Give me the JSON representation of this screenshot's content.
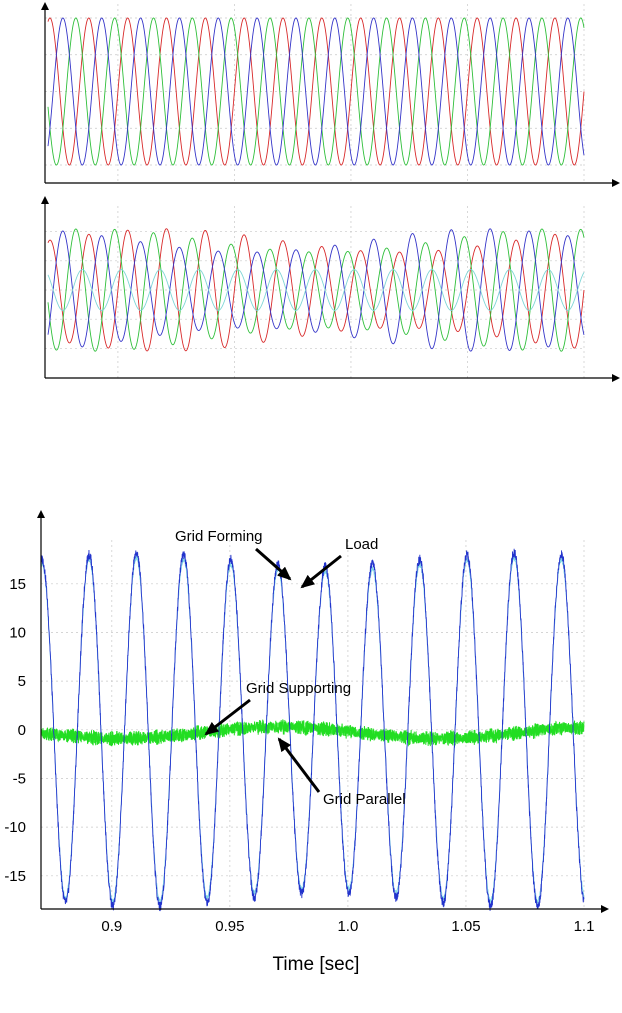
{
  "chart_data": [
    {
      "type": "line",
      "title": "",
      "xlabel": "",
      "ylabel": "",
      "grid": true,
      "x_range": [
        0.87,
        1.1
      ],
      "y_range": [
        -1,
        1
      ],
      "frequency_hz": 60,
      "series": [
        {
          "phase_deg": 0,
          "amplitude": 1.0,
          "color": "#d8292a"
        },
        {
          "phase_deg": 120,
          "amplitude": 1.0,
          "color": "#2fbf3a"
        },
        {
          "phase_deg": 240,
          "amplitude": 1.0,
          "color": "#3434c8"
        }
      ]
    },
    {
      "type": "line",
      "title": "",
      "xlabel": "",
      "ylabel": "",
      "grid": true,
      "x_range": [
        0.87,
        1.1
      ],
      "y_range": [
        -1.2,
        1.2
      ],
      "frequency_hz": 60,
      "series": [
        {
          "phase_deg": 0,
          "amplitude": 1.0,
          "color": "#d8292a"
        },
        {
          "phase_deg": 120,
          "amplitude": 1.0,
          "color": "#2fbf3a"
        },
        {
          "phase_deg": 240,
          "amplitude": 1.0,
          "color": "#3434c8"
        },
        {
          "phase_deg": 60,
          "amplitude": 0.35,
          "color": "#7fd6d6"
        }
      ]
    },
    {
      "type": "line",
      "title": "",
      "xlabel": "Time [sec]",
      "ylabel": "",
      "grid": true,
      "x_range": [
        0.87,
        1.1
      ],
      "y_range": [
        -18,
        19.5
      ],
      "x_ticks": [
        0.9,
        0.95,
        1.0,
        1.05,
        1.1
      ],
      "x_tick_labels": [
        "0.9",
        "0.95",
        "1.0",
        "1.05",
        "1.1"
      ],
      "y_ticks": [
        15,
        10,
        5,
        0,
        -5,
        -10,
        -15
      ],
      "y_tick_labels": [
        "15",
        "10",
        "5",
        "0",
        "-5",
        "-10",
        "-15"
      ],
      "frequency_hz": 50,
      "series": [
        {
          "label": "Grid Forming",
          "amplitude": 17.5,
          "color": "#2233cc"
        },
        {
          "label": "Load",
          "amplitude": 17.0,
          "color": "#7fd6e6"
        },
        {
          "label": "Grid Supporting",
          "amplitude": 0.8,
          "color": "#22dd22"
        },
        {
          "label": "Grid Parallel",
          "amplitude": 0.5,
          "color": "#55ee55"
        }
      ],
      "annotations": [
        "Grid Forming",
        "Load",
        "Grid Supporting",
        "Grid Parallel"
      ]
    }
  ]
}
